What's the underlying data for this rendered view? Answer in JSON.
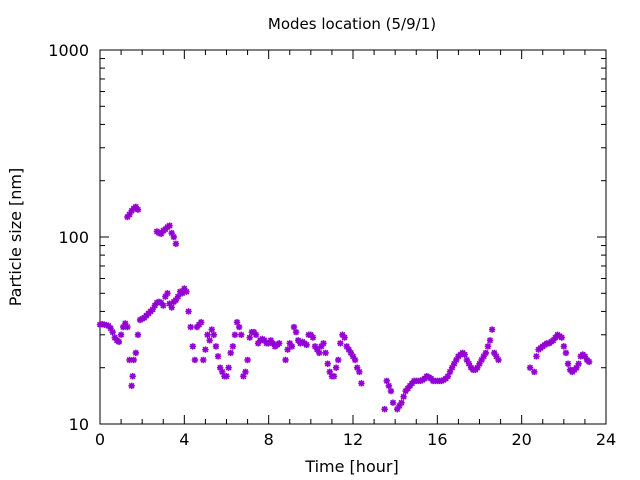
{
  "chart_data": {
    "type": "scatter",
    "title": "Modes location (5/9/1)",
    "xlabel": "Time [hour]",
    "ylabel": "Particle size [nm]",
    "xlim": [
      0,
      24
    ],
    "ylim": [
      10,
      1000
    ],
    "yscale": "log",
    "x_ticks": [
      0,
      4,
      8,
      12,
      16,
      20,
      24
    ],
    "x_tick_labels": [
      "0",
      "4",
      "8",
      "12",
      "16",
      "20",
      "24"
    ],
    "x_minor_step": 1,
    "y_ticks": [
      10,
      100,
      1000
    ],
    "y_tick_labels": [
      "10",
      "100",
      "1000"
    ],
    "grid": false,
    "marker_color": "#9400d3",
    "series": [
      {
        "points": [
          [
            0.0,
            34.0
          ],
          [
            0.1,
            34.2
          ],
          [
            0.2,
            34.0
          ],
          [
            0.3,
            33.8
          ],
          [
            0.4,
            33.5
          ],
          [
            0.5,
            32.5
          ],
          [
            0.6,
            31.0
          ],
          [
            0.7,
            29.0
          ],
          [
            0.8,
            28.0
          ],
          [
            0.9,
            27.5
          ],
          [
            1.0,
            30.0
          ],
          [
            1.1,
            33.0
          ],
          [
            1.2,
            34.5
          ],
          [
            1.3,
            33.0
          ],
          [
            1.4,
            22.0
          ],
          [
            1.5,
            16.0
          ],
          [
            1.55,
            18.0
          ],
          [
            1.6,
            22.0
          ],
          [
            1.7,
            24.0
          ],
          [
            1.8,
            30.0
          ],
          [
            1.9,
            36.0
          ],
          [
            2.0,
            36.5
          ],
          [
            2.1,
            37.0
          ],
          [
            2.2,
            38.0
          ],
          [
            2.3,
            39.0
          ],
          [
            2.4,
            40.0
          ],
          [
            2.5,
            41.0
          ],
          [
            2.6,
            43.0
          ],
          [
            2.7,
            44.5
          ],
          [
            2.8,
            45.0
          ],
          [
            2.9,
            44.5
          ],
          [
            3.0,
            43.0
          ],
          [
            3.1,
            48.0
          ],
          [
            3.2,
            50.0
          ],
          [
            3.3,
            44.0
          ],
          [
            3.4,
            42.0
          ],
          [
            3.5,
            45.0
          ],
          [
            3.6,
            46.0
          ],
          [
            3.7,
            48.0
          ],
          [
            3.8,
            51.0
          ],
          [
            3.9,
            50.0
          ],
          [
            4.0,
            53.0
          ],
          [
            4.1,
            51.0
          ],
          [
            4.2,
            40.0
          ],
          [
            4.3,
            33.0
          ],
          [
            4.4,
            26.0
          ],
          [
            4.5,
            22.0
          ],
          [
            4.6,
            33.0
          ],
          [
            4.7,
            34.0
          ],
          [
            4.8,
            35.0
          ],
          [
            4.9,
            22.0
          ],
          [
            5.0,
            25.0
          ],
          [
            5.1,
            30.0
          ],
          [
            5.2,
            28.0
          ],
          [
            5.3,
            32.0
          ],
          [
            5.4,
            30.0
          ],
          [
            5.5,
            26.0
          ],
          [
            5.6,
            23.0
          ],
          [
            5.7,
            20.0
          ],
          [
            5.8,
            19.0
          ],
          [
            5.9,
            18.0
          ],
          [
            6.0,
            18.0
          ],
          [
            6.1,
            20.0
          ],
          [
            6.2,
            24.0
          ],
          [
            6.3,
            26.0
          ],
          [
            6.4,
            30.0
          ],
          [
            6.5,
            35.0
          ],
          [
            6.6,
            33.0
          ],
          [
            6.7,
            30.0
          ],
          [
            6.8,
            18.0
          ],
          [
            6.9,
            19.0
          ],
          [
            7.0,
            22.0
          ],
          [
            7.1,
            29.0
          ],
          [
            7.2,
            31.0
          ],
          [
            7.3,
            31.0
          ],
          [
            7.4,
            30.0
          ],
          [
            7.5,
            27.0
          ],
          [
            7.6,
            28.0
          ],
          [
            7.7,
            28.5
          ],
          [
            7.8,
            28.0
          ],
          [
            7.9,
            27.0
          ],
          [
            8.0,
            27.0
          ],
          [
            8.1,
            28.0
          ],
          [
            8.2,
            27.0
          ],
          [
            8.3,
            26.0
          ],
          [
            8.4,
            26.5
          ],
          [
            8.5,
            27.0
          ],
          [
            8.8,
            22.0
          ],
          [
            8.9,
            25.0
          ],
          [
            9.0,
            27.0
          ],
          [
            9.1,
            26.0
          ],
          [
            9.2,
            33.0
          ],
          [
            9.3,
            31.0
          ],
          [
            9.4,
            28.0
          ],
          [
            9.5,
            27.0
          ],
          [
            9.6,
            27.5
          ],
          [
            9.7,
            27.0
          ],
          [
            9.8,
            26.5
          ],
          [
            9.9,
            30.0
          ],
          [
            10.0,
            30.0
          ],
          [
            10.1,
            29.0
          ],
          [
            10.2,
            26.0
          ],
          [
            10.3,
            25.0
          ],
          [
            10.4,
            24.0
          ],
          [
            10.5,
            26.0
          ],
          [
            10.6,
            27.0
          ],
          [
            10.7,
            24.0
          ],
          [
            10.8,
            21.0
          ],
          [
            10.9,
            19.0
          ],
          [
            11.0,
            18.0
          ],
          [
            11.1,
            18.0
          ],
          [
            11.2,
            20.0
          ],
          [
            11.3,
            22.0
          ],
          [
            11.4,
            27.0
          ],
          [
            11.5,
            30.0
          ],
          [
            11.6,
            29.0
          ],
          [
            11.7,
            26.0
          ],
          [
            11.8,
            25.0
          ],
          [
            11.9,
            24.0
          ],
          [
            12.0,
            23.0
          ],
          [
            12.1,
            22.0
          ],
          [
            12.2,
            20.0
          ],
          [
            12.3,
            19.0
          ],
          [
            12.4,
            16.5
          ],
          [
            13.5,
            12.0
          ],
          [
            13.6,
            17.0
          ],
          [
            13.7,
            16.0
          ],
          [
            13.8,
            15.0
          ],
          [
            13.9,
            13.0
          ],
          [
            14.1,
            12.0
          ],
          [
            14.2,
            12.5
          ],
          [
            14.3,
            13.0
          ],
          [
            14.4,
            14.0
          ],
          [
            14.5,
            15.0
          ],
          [
            14.6,
            15.5
          ],
          [
            14.7,
            16.0
          ],
          [
            14.8,
            16.5
          ],
          [
            14.9,
            17.0
          ],
          [
            15.0,
            17.0
          ],
          [
            15.1,
            17.0
          ],
          [
            15.2,
            17.0
          ],
          [
            15.3,
            17.2
          ],
          [
            15.4,
            17.5
          ],
          [
            15.5,
            18.0
          ],
          [
            15.6,
            17.8
          ],
          [
            15.7,
            17.5
          ],
          [
            15.8,
            17.0
          ],
          [
            15.9,
            17.0
          ],
          [
            16.0,
            17.0
          ],
          [
            16.1,
            17.0
          ],
          [
            16.2,
            17.0
          ],
          [
            16.3,
            17.2
          ],
          [
            16.4,
            17.5
          ],
          [
            16.5,
            18.0
          ],
          [
            16.6,
            19.0
          ],
          [
            16.7,
            20.0
          ],
          [
            16.8,
            21.0
          ],
          [
            16.9,
            22.0
          ],
          [
            17.0,
            23.0
          ],
          [
            17.1,
            23.5
          ],
          [
            17.2,
            24.0
          ],
          [
            17.3,
            23.5
          ],
          [
            17.4,
            22.0
          ],
          [
            17.5,
            21.0
          ],
          [
            17.6,
            20.0
          ],
          [
            17.7,
            19.5
          ],
          [
            17.8,
            19.5
          ],
          [
            17.9,
            20.0
          ],
          [
            18.0,
            21.0
          ],
          [
            18.1,
            22.0
          ],
          [
            18.2,
            23.0
          ],
          [
            18.3,
            24.0
          ],
          [
            18.4,
            26.0
          ],
          [
            18.5,
            28.0
          ],
          [
            18.6,
            32.0
          ],
          [
            18.7,
            24.0
          ],
          [
            18.8,
            23.0
          ],
          [
            18.9,
            22.0
          ],
          [
            20.4,
            20.0
          ],
          [
            20.6,
            19.0
          ],
          [
            20.7,
            23.0
          ],
          [
            20.8,
            25.0
          ],
          [
            20.9,
            25.5
          ],
          [
            21.0,
            26.0
          ],
          [
            21.1,
            26.5
          ],
          [
            21.2,
            27.0
          ],
          [
            21.3,
            27.0
          ],
          [
            21.4,
            27.5
          ],
          [
            21.5,
            28.0
          ],
          [
            21.6,
            29.0
          ],
          [
            21.7,
            30.0
          ],
          [
            21.8,
            29.5
          ],
          [
            21.9,
            29.0
          ],
          [
            22.0,
            26.0
          ],
          [
            22.1,
            24.0
          ],
          [
            22.2,
            21.0
          ],
          [
            22.3,
            19.5
          ],
          [
            22.4,
            19.0
          ],
          [
            22.5,
            19.5
          ],
          [
            22.6,
            20.0
          ],
          [
            22.7,
            21.0
          ],
          [
            22.8,
            23.0
          ],
          [
            22.9,
            23.5
          ],
          [
            23.0,
            23.0
          ],
          [
            23.1,
            22.0
          ],
          [
            23.2,
            21.5
          ],
          [
            1.3,
            128.0
          ],
          [
            1.4,
            132.0
          ],
          [
            1.5,
            138.0
          ],
          [
            1.6,
            142.0
          ],
          [
            1.7,
            145.0
          ],
          [
            1.8,
            140.0
          ],
          [
            2.7,
            107.0
          ],
          [
            2.8,
            105.0
          ],
          [
            2.9,
            104.0
          ],
          [
            3.0,
            108.0
          ],
          [
            3.1,
            110.0
          ],
          [
            3.2,
            113.0
          ],
          [
            3.3,
            115.0
          ],
          [
            3.4,
            105.0
          ],
          [
            3.5,
            100.0
          ],
          [
            3.6,
            92.0
          ]
        ]
      }
    ]
  }
}
